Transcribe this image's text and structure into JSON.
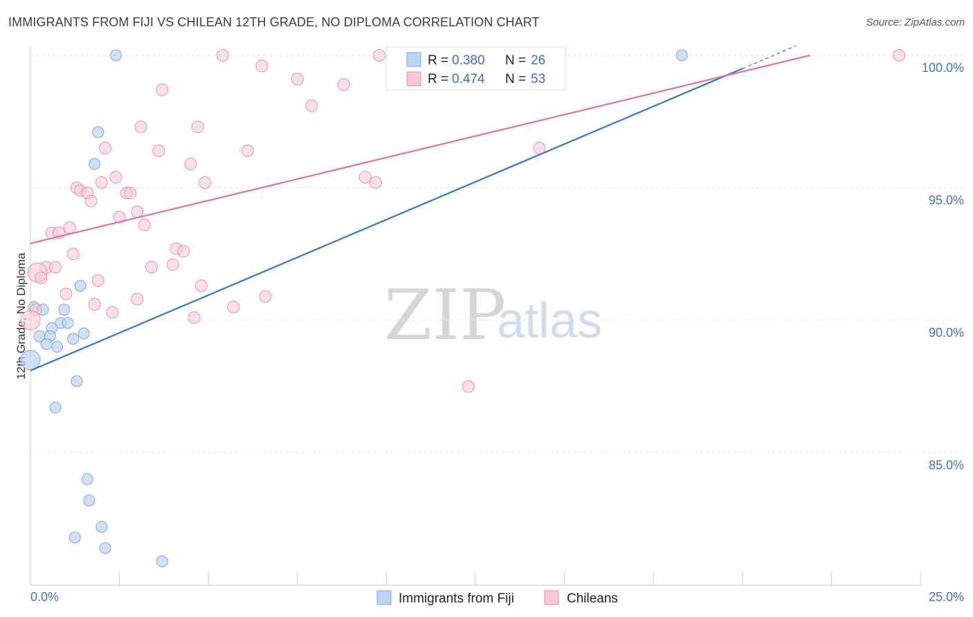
{
  "title": "IMMIGRANTS FROM FIJI VS CHILEAN 12TH GRADE, NO DIPLOMA CORRELATION CHART",
  "source": "Source: ZipAtlas.com",
  "watermark": {
    "zip": "ZIP",
    "atlas": "atlas"
  },
  "colors": {
    "blue": "#a9c8ef",
    "blue_line": "#2e75d0",
    "pink": "#f6b6cb",
    "pink_line": "#e46f98",
    "tick": "#4472c4"
  },
  "legend": {
    "rows": [
      {
        "r_label": "R = ",
        "r_value": "0.380",
        "n_label": "N = ",
        "n_value": "26"
      },
      {
        "r_label": "R = ",
        "r_value": "0.474",
        "n_label": "N = ",
        "n_value": "53"
      }
    ]
  },
  "chart_data": {
    "type": "scatter",
    "title": "IMMIGRANTS FROM FIJI VS CHILEAN 12TH GRADE, NO DIPLOMA CORRELATION CHART",
    "xlabel": "",
    "ylabel": "12th Grade, No Diploma",
    "xlim": [
      0,
      25
    ],
    "ylim": [
      80.5,
      100.5
    ],
    "x_tick_labels": [
      "0.0%",
      "25.0%"
    ],
    "y_ticks": [
      85,
      90,
      95,
      100
    ],
    "y_tick_labels": [
      "85.0%",
      "90.0%",
      "95.0%",
      "100.0%"
    ],
    "series": [
      {
        "name": "Immigrants from Fiji",
        "color": "#a9c8ef",
        "trend": {
          "x0": 0,
          "y0": 88.1,
          "x1": 20.0,
          "y1": 99.5,
          "dashed_to_x": 21.5
        },
        "points": [
          [
            2.4,
            100.0
          ],
          [
            18.3,
            100.0
          ],
          [
            1.9,
            97.1
          ],
          [
            1.8,
            95.9
          ],
          [
            1.4,
            91.3
          ],
          [
            0.1,
            90.5
          ],
          [
            0.35,
            90.4
          ],
          [
            0.95,
            90.4
          ],
          [
            0.85,
            89.9
          ],
          [
            1.05,
            89.9
          ],
          [
            0.6,
            89.7
          ],
          [
            0.25,
            89.4
          ],
          [
            0.55,
            89.4
          ],
          [
            1.5,
            89.5
          ],
          [
            0.45,
            89.1
          ],
          [
            0.75,
            89.0
          ],
          [
            1.2,
            89.3
          ],
          [
            0.0,
            88.5
          ],
          [
            1.3,
            87.7
          ],
          [
            0.7,
            86.7
          ],
          [
            1.6,
            84.0
          ],
          [
            1.65,
            83.2
          ],
          [
            1.25,
            81.8
          ],
          [
            2.0,
            82.2
          ],
          [
            2.1,
            81.4
          ],
          [
            3.7,
            80.9
          ]
        ]
      },
      {
        "name": "Chileans",
        "color": "#f6b6cb",
        "trend": {
          "x0": 0,
          "y0": 92.9,
          "x1": 21.9,
          "y1": 100.0
        },
        "points": [
          [
            5.4,
            100.0
          ],
          [
            9.8,
            100.0
          ],
          [
            24.4,
            100.0
          ],
          [
            6.5,
            99.6
          ],
          [
            7.5,
            99.1
          ],
          [
            8.8,
            98.9
          ],
          [
            3.7,
            98.7
          ],
          [
            7.9,
            98.1
          ],
          [
            3.1,
            97.3
          ],
          [
            4.7,
            97.3
          ],
          [
            2.1,
            96.5
          ],
          [
            3.6,
            96.4
          ],
          [
            6.1,
            96.4
          ],
          [
            14.3,
            96.5
          ],
          [
            4.5,
            95.9
          ],
          [
            2.4,
            95.4
          ],
          [
            2.0,
            95.2
          ],
          [
            4.9,
            95.2
          ],
          [
            9.4,
            95.4
          ],
          [
            9.7,
            95.2
          ],
          [
            1.3,
            95.0
          ],
          [
            1.4,
            94.9
          ],
          [
            1.6,
            94.8
          ],
          [
            2.7,
            94.8
          ],
          [
            2.8,
            94.8
          ],
          [
            1.7,
            94.5
          ],
          [
            3.0,
            94.1
          ],
          [
            2.5,
            93.9
          ],
          [
            3.2,
            93.6
          ],
          [
            1.1,
            93.5
          ],
          [
            0.6,
            93.3
          ],
          [
            0.8,
            93.3
          ],
          [
            4.1,
            92.7
          ],
          [
            4.3,
            92.6
          ],
          [
            1.2,
            92.5
          ],
          [
            0.45,
            92.0
          ],
          [
            0.7,
            92.0
          ],
          [
            3.4,
            92.0
          ],
          [
            4.0,
            92.1
          ],
          [
            0.2,
            91.8
          ],
          [
            0.3,
            91.6
          ],
          [
            1.9,
            91.5
          ],
          [
            4.8,
            91.3
          ],
          [
            1.0,
            91.0
          ],
          [
            6.6,
            90.9
          ],
          [
            3.0,
            90.8
          ],
          [
            1.8,
            90.6
          ],
          [
            5.7,
            90.5
          ],
          [
            0.15,
            90.4
          ],
          [
            2.3,
            90.3
          ],
          [
            4.6,
            90.1
          ],
          [
            0.0,
            90.0
          ],
          [
            12.3,
            87.5
          ]
        ]
      }
    ],
    "legend": [
      "Immigrants from Fiji",
      "Chileans"
    ]
  }
}
